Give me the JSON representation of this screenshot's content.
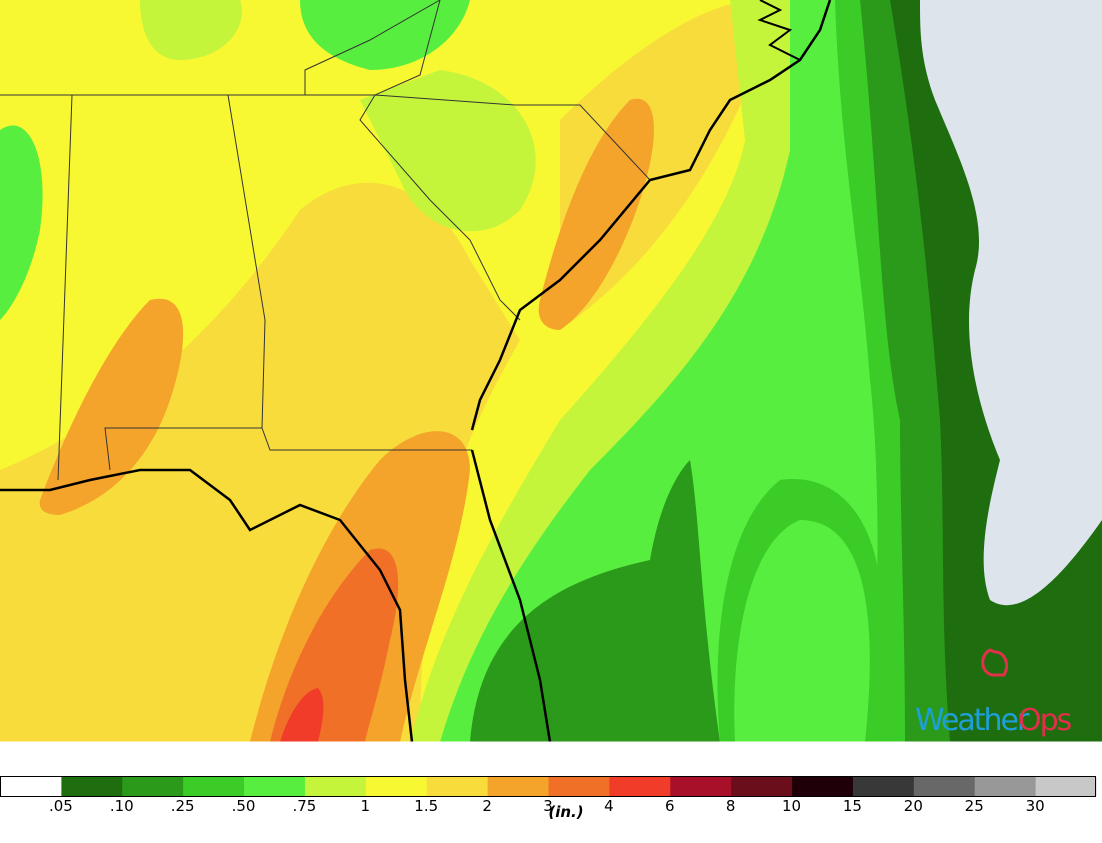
{
  "legend": {
    "colors": [
      "#ffffff",
      "#1e6e10",
      "#2b9a1a",
      "#3ccc28",
      "#58ee40",
      "#c4f53a",
      "#f8f832",
      "#f8dc3c",
      "#f4a42a",
      "#f07028",
      "#f03c28",
      "#a8102a",
      "#6a0e1c",
      "#200008",
      "#383838",
      "#686868",
      "#989898",
      "#c8c8c8"
    ],
    "labels": [
      ".05",
      ".10",
      ".25",
      ".50",
      ".75",
      "1",
      "1.5",
      "2",
      "3",
      "4",
      "6",
      "8",
      "10",
      "15",
      "20",
      "25",
      "30"
    ],
    "unit": "(in.)"
  },
  "logo": [
    "Weather",
    "Ops"
  ]
}
